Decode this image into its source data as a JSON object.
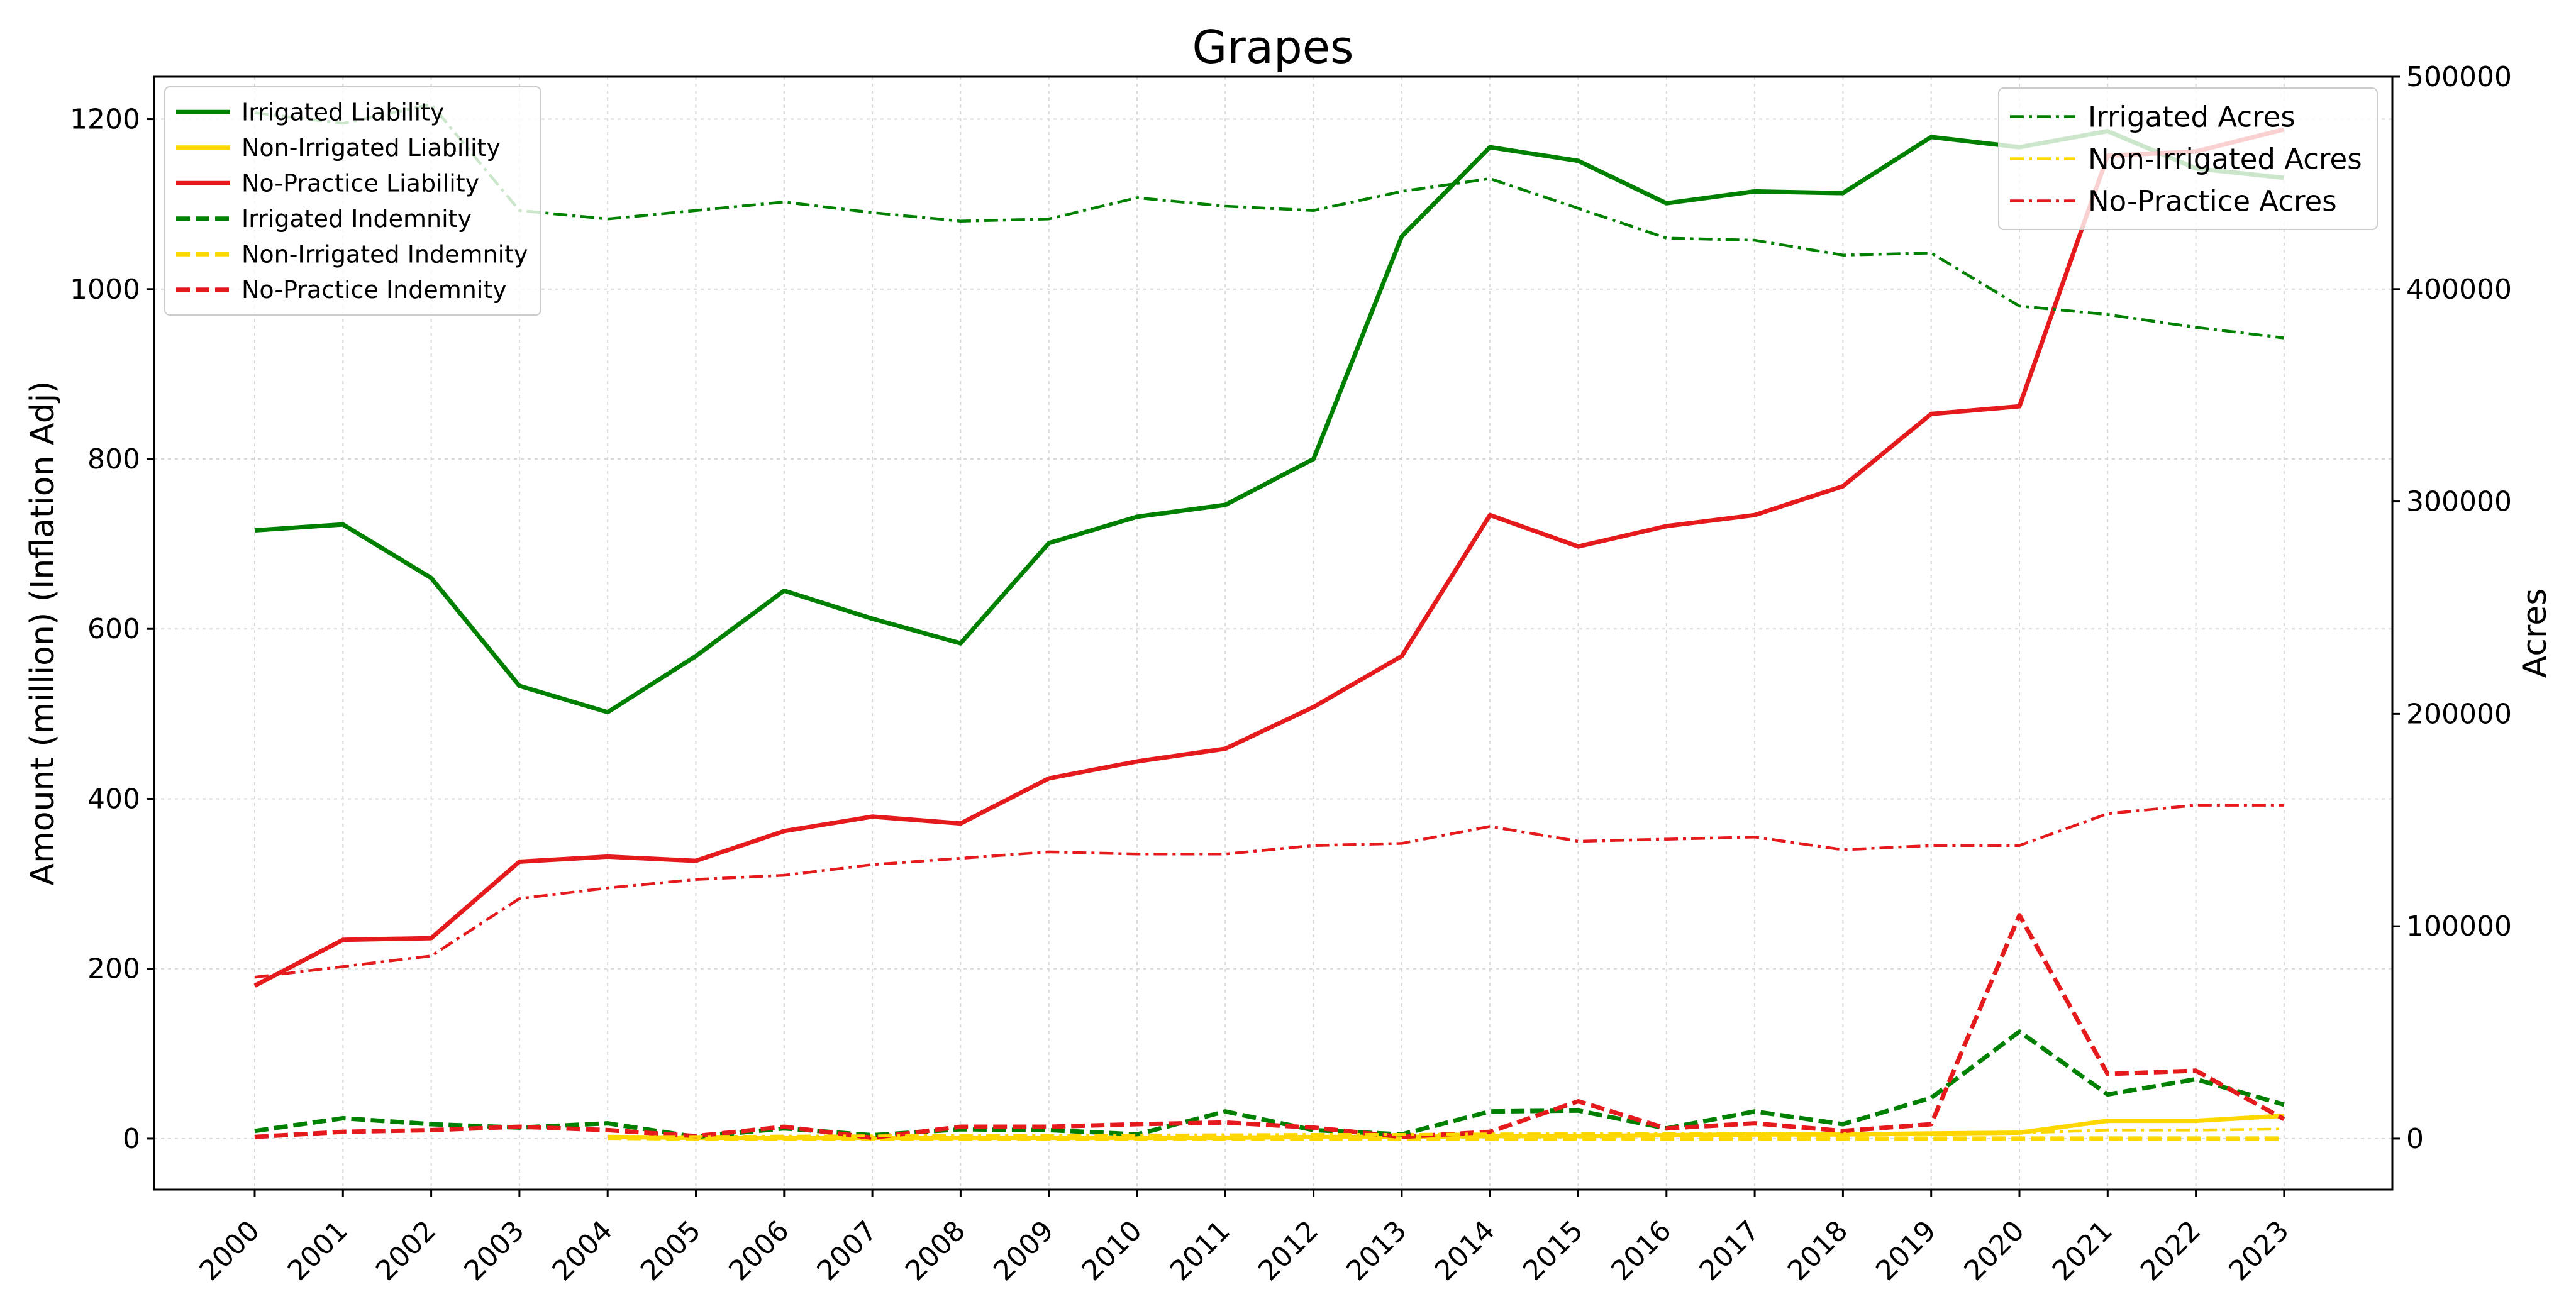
{
  "chart_data": {
    "type": "line",
    "title": "Grapes",
    "xlabel": "",
    "ylabel": "Amount (million) (Inflation Adj)",
    "y2label": "Acres",
    "categories": [
      "2000",
      "2001",
      "2002",
      "2003",
      "2004",
      "2005",
      "2006",
      "2007",
      "2008",
      "2009",
      "2010",
      "2011",
      "2012",
      "2013",
      "2014",
      "2015",
      "2016",
      "2017",
      "2018",
      "2019",
      "2020",
      "2021",
      "2022",
      "2023"
    ],
    "ylim": [
      -60,
      1250
    ],
    "y_ticks": [
      0,
      200,
      400,
      600,
      800,
      1000,
      1200
    ],
    "y2lim": [
      -24000,
      500000
    ],
    "y2_ticks": [
      0,
      100000,
      200000,
      300000,
      400000,
      500000
    ],
    "grid": true,
    "left_legend_placement": "top-left",
    "right_legend_placement": "top-right",
    "series": [
      {
        "name": "Irrigated Liability",
        "axis": "left",
        "color": "#008000",
        "style": "solid",
        "values": [
          716,
          723,
          660,
          533,
          502,
          568,
          645,
          612,
          583,
          701,
          732,
          746,
          800,
          1062,
          1167,
          1151,
          1101,
          1115,
          1113,
          1179,
          1167,
          1186,
          1142,
          1131
        ]
      },
      {
        "name": "Non-Irrigated Liability",
        "axis": "left",
        "color": "#FFD700",
        "style": "solid",
        "values": [
          null,
          null,
          null,
          null,
          2,
          1,
          1,
          1,
          1,
          1,
          1,
          1,
          2,
          2,
          3,
          3,
          4,
          5,
          5,
          6,
          7,
          21,
          21,
          27
        ]
      },
      {
        "name": "No-Practice Liability",
        "axis": "left",
        "color": "#E41A1C",
        "style": "solid",
        "values": [
          180,
          234,
          236,
          326,
          332,
          327,
          362,
          379,
          371,
          424,
          444,
          459,
          508,
          568,
          734,
          697,
          721,
          734,
          768,
          853,
          862,
          1157,
          1162,
          1188
        ]
      },
      {
        "name": "Irrigated Indemnity",
        "axis": "left",
        "color": "#008000",
        "style": "dashed",
        "values": [
          9,
          24,
          17,
          13,
          18,
          2,
          12,
          4,
          11,
          10,
          5,
          32,
          10,
          5,
          32,
          33,
          12,
          32,
          17,
          48,
          126,
          52,
          70,
          40
        ]
      },
      {
        "name": "Non-Irrigated Indemnity",
        "axis": "left",
        "color": "#FFD700",
        "style": "dashed",
        "values": [
          null,
          null,
          null,
          null,
          1,
          0,
          0,
          0,
          0,
          0,
          0,
          0,
          0,
          0,
          0,
          0,
          0,
          0,
          0,
          0,
          0,
          0,
          0,
          0
        ]
      },
      {
        "name": "No-Practice Indemnity",
        "axis": "left",
        "color": "#E41A1C",
        "style": "dashed",
        "values": [
          2,
          8,
          10,
          14,
          10,
          3,
          14,
          1,
          14,
          14,
          17,
          19,
          13,
          2,
          8,
          44,
          12,
          18,
          9,
          17,
          263,
          76,
          80,
          23
        ]
      },
      {
        "name": "Irrigated Acres",
        "axis": "right",
        "color": "#008000",
        "style": "dashdot",
        "values": [
          483000,
          478000,
          487000,
          437000,
          433000,
          437000,
          441000,
          436000,
          432000,
          433000,
          443000,
          439000,
          437000,
          446000,
          452000,
          438000,
          424000,
          423000,
          416000,
          417000,
          392000,
          388000,
          382000,
          377000
        ]
      },
      {
        "name": "Non-Irrigated Acres",
        "axis": "right",
        "color": "#FFD700",
        "style": "dashdot",
        "values": [
          null,
          null,
          null,
          null,
          1000,
          1000,
          1200,
          1300,
          1500,
          1500,
          1700,
          1800,
          2000,
          2000,
          2200,
          2300,
          2400,
          2500,
          2500,
          2600,
          2700,
          4000,
          4000,
          4500
        ]
      },
      {
        "name": "No-Practice Acres",
        "axis": "right",
        "color": "#E41A1C",
        "style": "dashdot",
        "values": [
          76000,
          81000,
          86000,
          113000,
          118000,
          122000,
          124000,
          129000,
          132000,
          135000,
          134000,
          134000,
          138000,
          139000,
          147000,
          140000,
          141000,
          142000,
          136000,
          138000,
          138000,
          153000,
          157000,
          157000
        ]
      }
    ]
  }
}
